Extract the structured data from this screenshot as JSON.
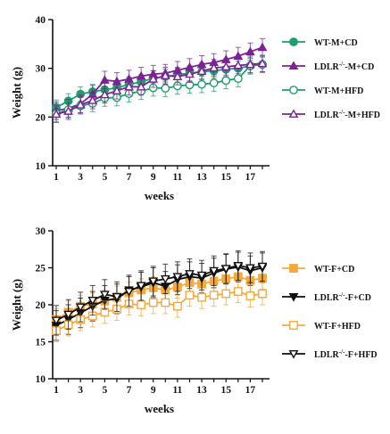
{
  "chart_data": [
    {
      "type": "line",
      "xlabel": "weeks",
      "ylabel": "Weight (g)",
      "ylim": [
        10,
        40
      ],
      "xlim": [
        1,
        18
      ],
      "yticks": [
        "10",
        "20",
        "30",
        "40"
      ],
      "xticks": [
        "1",
        "3",
        "5",
        "7",
        "9",
        "11",
        "13",
        "15",
        "17"
      ],
      "x": [
        1,
        2,
        3,
        4,
        5,
        6,
        7,
        8,
        9,
        10,
        11,
        12,
        13,
        14,
        15,
        16,
        17,
        18
      ],
      "legend_position": "right",
      "error_bars": true,
      "series": [
        {
          "name": "WT-M+CD",
          "color": "#1e9e6c",
          "marker": "circle-filled",
          "values": [
            22.0,
            23.3,
            24.7,
            25.2,
            25.6,
            26.0,
            26.7,
            27.2,
            28.0,
            28.3,
            28.7,
            29.0,
            29.3,
            29.5,
            29.8,
            30.0,
            30.5,
            30.8
          ],
          "errors": [
            1.5,
            1.5,
            1.5,
            1.5,
            1.5,
            1.5,
            1.5,
            1.5,
            1.5,
            1.5,
            1.5,
            1.5,
            1.5,
            1.5,
            1.5,
            1.5,
            1.5,
            1.5
          ]
        },
        {
          "name_prefix": "LDLR",
          "name_sup": "-/-",
          "name_suffix": "-M+CD",
          "color": "#7b2394",
          "marker": "triangle-filled",
          "values": [
            21.3,
            21.8,
            22.7,
            24.7,
            27.6,
            27.3,
            27.8,
            28.4,
            28.8,
            29.0,
            29.6,
            30.2,
            30.8,
            31.2,
            31.8,
            32.5,
            33.4,
            34.3
          ],
          "errors": [
            1.8,
            1.8,
            1.8,
            1.8,
            1.8,
            1.8,
            1.8,
            1.8,
            1.8,
            1.8,
            1.8,
            1.8,
            1.8,
            1.8,
            1.8,
            1.8,
            1.8,
            1.8
          ]
        },
        {
          "name": "WT-M+HFD",
          "color": "#1e9e6c",
          "marker": "circle-open",
          "values": [
            20.7,
            21.5,
            22.3,
            22.8,
            23.9,
            24.0,
            24.8,
            25.3,
            26.0,
            25.9,
            26.4,
            26.6,
            26.7,
            27.0,
            27.5,
            27.9,
            30.5,
            30.8
          ],
          "errors": [
            1.7,
            1.7,
            1.7,
            1.7,
            1.7,
            1.7,
            1.7,
            1.7,
            1.7,
            1.7,
            1.7,
            1.7,
            1.7,
            1.7,
            1.7,
            1.7,
            1.7,
            1.7
          ]
        },
        {
          "name_prefix": "LDLR",
          "name_sup": "-/-",
          "name_suffix": "-M+HFD",
          "color": "#7b2394",
          "marker": "triangle-open",
          "values": [
            20.6,
            21.2,
            22.5,
            23.4,
            24.6,
            25.4,
            26.2,
            26.2,
            27.8,
            28.5,
            28.3,
            28.8,
            29.4,
            30.1,
            30.3,
            30.6,
            30.8,
            31.0
          ],
          "errors": [
            1.7,
            1.7,
            1.7,
            1.7,
            1.7,
            1.7,
            1.7,
            1.7,
            1.7,
            1.7,
            1.7,
            1.7,
            1.7,
            1.7,
            1.7,
            1.7,
            1.7,
            1.7
          ]
        }
      ]
    },
    {
      "type": "line",
      "xlabel": "weeks",
      "ylabel": "Weight (g)",
      "ylim": [
        10,
        30
      ],
      "xlim": [
        1,
        18
      ],
      "yticks": [
        "10",
        "15",
        "20",
        "25",
        "30"
      ],
      "xticks": [
        "1",
        "3",
        "5",
        "7",
        "9",
        "11",
        "13",
        "15",
        "17"
      ],
      "x": [
        1,
        2,
        3,
        4,
        5,
        6,
        7,
        8,
        9,
        10,
        11,
        12,
        13,
        14,
        15,
        16,
        17,
        18
      ],
      "legend_position": "right",
      "error_bars": true,
      "series": [
        {
          "name": "WT-F+CD",
          "color": "#f5a93b",
          "marker": "square-filled",
          "values": [
            18.0,
            19.0,
            19.8,
            20.1,
            20.5,
            21.0,
            21.6,
            22.0,
            22.3,
            22.0,
            22.4,
            23.0,
            22.8,
            23.2,
            23.5,
            23.8,
            23.3,
            23.6
          ],
          "errors": [
            1.5,
            1.5,
            1.5,
            1.5,
            1.5,
            1.5,
            1.5,
            1.5,
            1.5,
            1.5,
            1.5,
            1.5,
            1.5,
            1.5,
            1.5,
            1.5,
            1.5,
            1.5
          ]
        },
        {
          "name_prefix": "LDLR",
          "name_sup": "-/-",
          "name_suffix": "-F+CD",
          "color": "#111111",
          "marker": "triangle-down-filled",
          "values": [
            17.2,
            18.0,
            18.9,
            19.8,
            20.6,
            20.8,
            22.0,
            22.4,
            23.0,
            22.5,
            23.4,
            23.8,
            23.6,
            24.3,
            24.8,
            25.1,
            24.6,
            25.0
          ],
          "errors": [
            2.0,
            2.0,
            2.0,
            2.0,
            2.0,
            2.0,
            2.0,
            2.0,
            2.0,
            2.0,
            2.0,
            2.0,
            2.0,
            2.0,
            2.0,
            2.0,
            2.0,
            2.0
          ]
        },
        {
          "name": "WT-F+HFD",
          "color": "#f5a93b",
          "marker": "square-open",
          "values": [
            16.5,
            17.3,
            18.0,
            18.5,
            19.0,
            19.4,
            20.1,
            20.0,
            20.3,
            20.3,
            19.8,
            21.3,
            21.0,
            21.3,
            21.5,
            21.8,
            21.2,
            21.5
          ],
          "errors": [
            1.5,
            1.5,
            1.5,
            1.5,
            1.5,
            1.5,
            1.5,
            1.5,
            1.5,
            1.5,
            1.5,
            1.5,
            1.5,
            1.5,
            1.5,
            1.5,
            1.5,
            1.5
          ]
        },
        {
          "name_prefix": "LDLR",
          "name_sup": "-/-",
          "name_suffix": "-F+HFD",
          "color": "#111111",
          "marker": "triangle-down-open",
          "values": [
            17.9,
            18.7,
            19.7,
            20.6,
            21.4,
            21.1,
            21.8,
            22.6,
            23.2,
            23.5,
            23.8,
            24.2,
            24.0,
            24.6,
            24.9,
            25.3,
            25.0,
            25.2
          ],
          "errors": [
            2.0,
            2.0,
            2.0,
            2.0,
            2.0,
            2.0,
            2.0,
            2.0,
            2.0,
            2.0,
            2.0,
            2.0,
            2.0,
            2.0,
            2.0,
            2.0,
            2.0,
            2.0
          ]
        }
      ]
    }
  ]
}
